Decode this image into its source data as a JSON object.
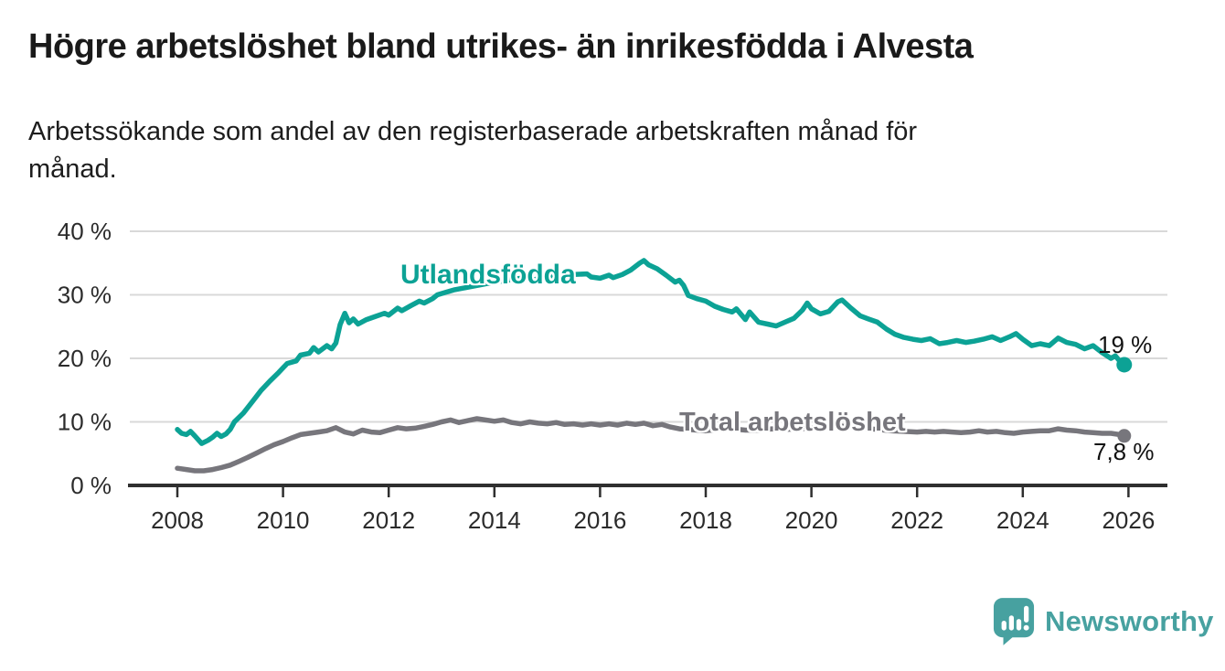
{
  "header": {
    "title": "Högre arbetslöshet bland utrikes- än inrikesfödda i Alvesta",
    "subtitle": "Arbetssökande som andel av den registerbaserade arbetskraften månad för\nmånad."
  },
  "branding": {
    "name": "Newsworthy",
    "color": "#47a1a0"
  },
  "chart_data": {
    "type": "line",
    "title": "Högre arbetslöshet bland utrikes- än inrikesfödda i Alvesta",
    "subtitle": "Arbetssökande som andel av den registerbaserade arbetskraften månad för månad.",
    "xlabel": "",
    "ylabel": "",
    "unit": "%",
    "grid": "horizontal",
    "legend_position": "inline-labels",
    "grid_color": "#d9d9d9",
    "axis_color": "#2f2f2f",
    "tick_text_color": "#2b2b2b",
    "ylim": [
      0,
      42
    ],
    "xlim": [
      2007.1,
      2026.75
    ],
    "x_ticks": [
      {
        "value": 2008,
        "label": "2008"
      },
      {
        "value": 2010,
        "label": "2010"
      },
      {
        "value": 2012,
        "label": "2012"
      },
      {
        "value": 2014,
        "label": "2014"
      },
      {
        "value": 2016,
        "label": "2016"
      },
      {
        "value": 2018,
        "label": "2018"
      },
      {
        "value": 2020,
        "label": "2020"
      },
      {
        "value": 2022,
        "label": "2022"
      },
      {
        "value": 2024,
        "label": "2024"
      },
      {
        "value": 2026,
        "label": "2026"
      }
    ],
    "y_ticks": [
      {
        "value": 0,
        "label": "0 %"
      },
      {
        "value": 10,
        "label": "10 %"
      },
      {
        "value": 20,
        "label": "20 %"
      },
      {
        "value": 30,
        "label": "30 %"
      },
      {
        "value": 40,
        "label": "40 %"
      }
    ],
    "series": [
      {
        "name": "Utlandsfödda",
        "color": "#0ca295",
        "end_dot_radius": 8.5,
        "last_value_label": "19 %",
        "points": [
          [
            2008.0,
            8.8
          ],
          [
            2008.08,
            8.2
          ],
          [
            2008.17,
            8.0
          ],
          [
            2008.25,
            8.5
          ],
          [
            2008.33,
            7.8
          ],
          [
            2008.46,
            6.6
          ],
          [
            2008.58,
            7.1
          ],
          [
            2008.67,
            7.6
          ],
          [
            2008.75,
            8.2
          ],
          [
            2008.83,
            7.7
          ],
          [
            2008.92,
            8.1
          ],
          [
            2009.0,
            8.8
          ],
          [
            2009.08,
            10.0
          ],
          [
            2009.25,
            11.4
          ],
          [
            2009.42,
            13.2
          ],
          [
            2009.58,
            14.9
          ],
          [
            2009.75,
            16.4
          ],
          [
            2009.92,
            17.8
          ],
          [
            2010.0,
            18.5
          ],
          [
            2010.08,
            19.2
          ],
          [
            2010.25,
            19.6
          ],
          [
            2010.33,
            20.5
          ],
          [
            2010.5,
            20.8
          ],
          [
            2010.58,
            21.7
          ],
          [
            2010.67,
            21.0
          ],
          [
            2010.83,
            22.0
          ],
          [
            2010.92,
            21.5
          ],
          [
            2011.0,
            22.4
          ],
          [
            2011.08,
            25.3
          ],
          [
            2011.17,
            27.1
          ],
          [
            2011.25,
            25.6
          ],
          [
            2011.33,
            26.2
          ],
          [
            2011.42,
            25.4
          ],
          [
            2011.58,
            26.1
          ],
          [
            2011.75,
            26.6
          ],
          [
            2011.92,
            27.1
          ],
          [
            2012.0,
            26.8
          ],
          [
            2012.17,
            27.9
          ],
          [
            2012.25,
            27.5
          ],
          [
            2012.42,
            28.3
          ],
          [
            2012.58,
            29.0
          ],
          [
            2012.67,
            28.7
          ],
          [
            2012.83,
            29.4
          ],
          [
            2012.92,
            30.0
          ],
          [
            2013.08,
            30.4
          ],
          [
            2013.25,
            30.8
          ],
          [
            2013.5,
            31.2
          ],
          [
            2013.75,
            31.6
          ],
          [
            2014.0,
            32.0
          ],
          [
            2014.25,
            32.3
          ],
          [
            2014.5,
            32.6
          ],
          [
            2014.75,
            32.4
          ],
          [
            2015.0,
            32.7
          ],
          [
            2015.25,
            33.0
          ],
          [
            2015.5,
            33.2
          ],
          [
            2015.75,
            33.3
          ],
          [
            2015.83,
            32.8
          ],
          [
            2016.0,
            32.6
          ],
          [
            2016.17,
            33.1
          ],
          [
            2016.25,
            32.7
          ],
          [
            2016.42,
            33.2
          ],
          [
            2016.58,
            33.9
          ],
          [
            2016.75,
            35.0
          ],
          [
            2016.83,
            35.4
          ],
          [
            2016.92,
            34.7
          ],
          [
            2017.08,
            34.1
          ],
          [
            2017.25,
            33.1
          ],
          [
            2017.42,
            32.0
          ],
          [
            2017.5,
            32.3
          ],
          [
            2017.58,
            31.5
          ],
          [
            2017.67,
            29.9
          ],
          [
            2017.83,
            29.4
          ],
          [
            2018.0,
            29.0
          ],
          [
            2018.17,
            28.2
          ],
          [
            2018.33,
            27.7
          ],
          [
            2018.5,
            27.3
          ],
          [
            2018.58,
            27.8
          ],
          [
            2018.75,
            26.1
          ],
          [
            2018.83,
            27.3
          ],
          [
            2019.0,
            25.7
          ],
          [
            2019.17,
            25.4
          ],
          [
            2019.33,
            25.1
          ],
          [
            2019.5,
            25.7
          ],
          [
            2019.67,
            26.3
          ],
          [
            2019.83,
            27.6
          ],
          [
            2019.92,
            28.7
          ],
          [
            2020.0,
            27.8
          ],
          [
            2020.17,
            27.0
          ],
          [
            2020.33,
            27.4
          ],
          [
            2020.5,
            28.9
          ],
          [
            2020.58,
            29.2
          ],
          [
            2020.75,
            27.9
          ],
          [
            2020.92,
            26.7
          ],
          [
            2021.08,
            26.2
          ],
          [
            2021.25,
            25.7
          ],
          [
            2021.42,
            24.6
          ],
          [
            2021.58,
            23.8
          ],
          [
            2021.75,
            23.3
          ],
          [
            2021.92,
            23.0
          ],
          [
            2022.08,
            22.8
          ],
          [
            2022.25,
            23.1
          ],
          [
            2022.42,
            22.3
          ],
          [
            2022.58,
            22.5
          ],
          [
            2022.75,
            22.8
          ],
          [
            2022.92,
            22.5
          ],
          [
            2023.08,
            22.7
          ],
          [
            2023.25,
            23.0
          ],
          [
            2023.42,
            23.4
          ],
          [
            2023.58,
            22.8
          ],
          [
            2023.75,
            23.4
          ],
          [
            2023.87,
            23.9
          ],
          [
            2024.0,
            23.0
          ],
          [
            2024.17,
            22.0
          ],
          [
            2024.33,
            22.3
          ],
          [
            2024.5,
            22.0
          ],
          [
            2024.67,
            23.2
          ],
          [
            2024.83,
            22.5
          ],
          [
            2025.0,
            22.2
          ],
          [
            2025.17,
            21.5
          ],
          [
            2025.33,
            22.0
          ],
          [
            2025.5,
            20.9
          ],
          [
            2025.67,
            20.0
          ],
          [
            2025.75,
            20.4
          ],
          [
            2025.83,
            19.6
          ],
          [
            2025.92,
            19.0
          ]
        ]
      },
      {
        "name": "Total arbetslöshet",
        "color": "#77767c",
        "end_dot_radius": 7.5,
        "last_value_label": "7,8 %",
        "points": [
          [
            2008.0,
            2.7
          ],
          [
            2008.17,
            2.5
          ],
          [
            2008.33,
            2.3
          ],
          [
            2008.5,
            2.3
          ],
          [
            2008.67,
            2.5
          ],
          [
            2008.83,
            2.8
          ],
          [
            2009.0,
            3.2
          ],
          [
            2009.17,
            3.8
          ],
          [
            2009.33,
            4.4
          ],
          [
            2009.5,
            5.1
          ],
          [
            2009.67,
            5.8
          ],
          [
            2009.83,
            6.4
          ],
          [
            2010.0,
            6.9
          ],
          [
            2010.17,
            7.5
          ],
          [
            2010.33,
            8.0
          ],
          [
            2010.5,
            8.2
          ],
          [
            2010.67,
            8.4
          ],
          [
            2010.83,
            8.6
          ],
          [
            2011.0,
            9.1
          ],
          [
            2011.17,
            8.4
          ],
          [
            2011.33,
            8.1
          ],
          [
            2011.5,
            8.7
          ],
          [
            2011.67,
            8.4
          ],
          [
            2011.83,
            8.3
          ],
          [
            2012.0,
            8.7
          ],
          [
            2012.17,
            9.1
          ],
          [
            2012.33,
            8.9
          ],
          [
            2012.5,
            9.0
          ],
          [
            2012.67,
            9.3
          ],
          [
            2012.83,
            9.6
          ],
          [
            2013.0,
            10.0
          ],
          [
            2013.17,
            10.3
          ],
          [
            2013.33,
            9.9
          ],
          [
            2013.5,
            10.2
          ],
          [
            2013.67,
            10.5
          ],
          [
            2013.83,
            10.3
          ],
          [
            2014.0,
            10.1
          ],
          [
            2014.17,
            10.3
          ],
          [
            2014.33,
            9.9
          ],
          [
            2014.5,
            9.7
          ],
          [
            2014.67,
            10.0
          ],
          [
            2014.83,
            9.8
          ],
          [
            2015.0,
            9.7
          ],
          [
            2015.17,
            9.9
          ],
          [
            2015.33,
            9.6
          ],
          [
            2015.5,
            9.7
          ],
          [
            2015.67,
            9.5
          ],
          [
            2015.83,
            9.7
          ],
          [
            2016.0,
            9.5
          ],
          [
            2016.17,
            9.7
          ],
          [
            2016.33,
            9.5
          ],
          [
            2016.5,
            9.8
          ],
          [
            2016.67,
            9.6
          ],
          [
            2016.83,
            9.8
          ],
          [
            2017.0,
            9.4
          ],
          [
            2017.17,
            9.6
          ],
          [
            2017.33,
            9.2
          ],
          [
            2017.5,
            8.9
          ],
          [
            2017.67,
            8.8
          ],
          [
            2017.83,
            8.7
          ],
          [
            2018.0,
            8.6
          ],
          [
            2018.25,
            8.8
          ],
          [
            2018.5,
            8.9
          ],
          [
            2018.75,
            8.7
          ],
          [
            2019.0,
            8.7
          ],
          [
            2019.25,
            8.9
          ],
          [
            2019.5,
            8.8
          ],
          [
            2019.75,
            8.9
          ],
          [
            2020.0,
            9.0
          ],
          [
            2020.25,
            9.3
          ],
          [
            2020.5,
            9.4
          ],
          [
            2020.75,
            9.2
          ],
          [
            2021.0,
            9.0
          ],
          [
            2021.25,
            8.8
          ],
          [
            2021.5,
            8.6
          ],
          [
            2021.75,
            8.5
          ],
          [
            2022.0,
            8.4
          ],
          [
            2022.17,
            8.5
          ],
          [
            2022.33,
            8.4
          ],
          [
            2022.5,
            8.5
          ],
          [
            2022.67,
            8.4
          ],
          [
            2022.83,
            8.3
          ],
          [
            2023.0,
            8.4
          ],
          [
            2023.17,
            8.6
          ],
          [
            2023.33,
            8.4
          ],
          [
            2023.5,
            8.5
          ],
          [
            2023.67,
            8.3
          ],
          [
            2023.83,
            8.2
          ],
          [
            2024.0,
            8.4
          ],
          [
            2024.17,
            8.5
          ],
          [
            2024.33,
            8.6
          ],
          [
            2024.5,
            8.6
          ],
          [
            2024.67,
            8.9
          ],
          [
            2024.83,
            8.7
          ],
          [
            2025.0,
            8.6
          ],
          [
            2025.17,
            8.4
          ],
          [
            2025.33,
            8.3
          ],
          [
            2025.5,
            8.2
          ],
          [
            2025.67,
            8.2
          ],
          [
            2025.83,
            8.0
          ],
          [
            2025.92,
            7.8
          ]
        ]
      }
    ]
  }
}
